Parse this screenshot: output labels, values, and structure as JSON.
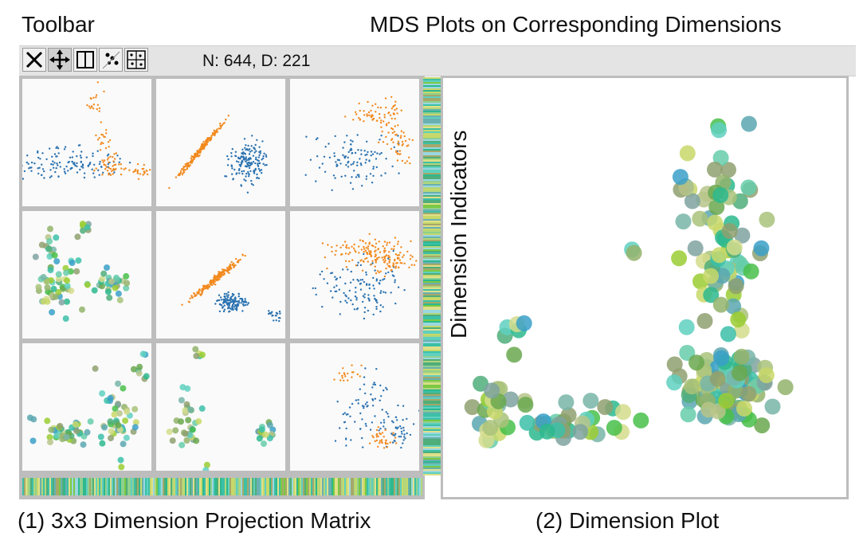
{
  "annotations": {
    "toolbar_label": "Toolbar",
    "mds_label": "MDS Plots on Corresponding Dimensions",
    "dimension_indicators_label": "Dimension Indicators",
    "matrix_caption": "(1) 3x3 Dimension Projection Matrix",
    "plot_caption": "(2) Dimension Plot"
  },
  "toolbar": {
    "tools": [
      {
        "icon": "close-x-icon"
      },
      {
        "icon": "move-arrows-icon"
      },
      {
        "icon": "panel-icon"
      },
      {
        "icon": "scatter-select-icon"
      },
      {
        "icon": "grid-dots-icon"
      }
    ],
    "stats": "N: 644, D: 221"
  },
  "colors": {
    "orange": "#f28a1e",
    "blue": "#2a72b0",
    "frame": "#bdbdbd",
    "toolbar_bg": "#e4e4e4"
  }
}
